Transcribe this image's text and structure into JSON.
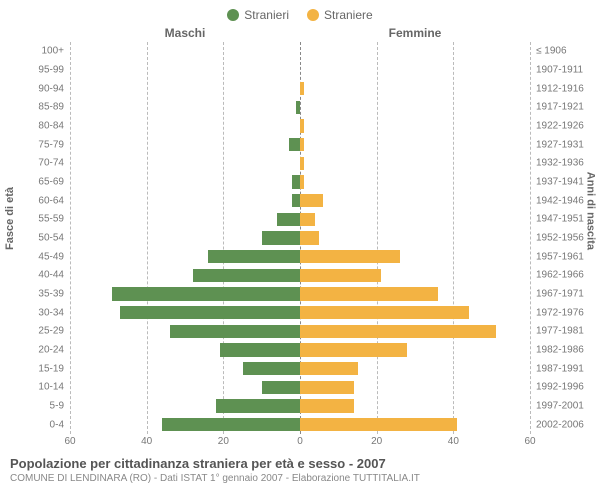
{
  "chart": {
    "type": "population-pyramid",
    "legend": [
      {
        "label": "Stranieri",
        "color": "#5e9152"
      },
      {
        "label": "Straniere",
        "color": "#f3b343"
      }
    ],
    "column_headers": {
      "left": "Maschi",
      "right": "Femmine"
    },
    "y_left_title": "Fasce di età",
    "y_right_title": "Anni di nascita",
    "xlim": 60,
    "xtick_step": 20,
    "grid_color": "#bbbbbb",
    "centerline_color": "#888888",
    "bar_color_left": "#5e9152",
    "bar_color_right": "#f3b343",
    "label_fontsize": 10,
    "header_fontsize": 12,
    "rows": [
      {
        "age": "100+",
        "birth": "≤ 1906",
        "m": 0,
        "f": 0
      },
      {
        "age": "95-99",
        "birth": "1907-1911",
        "m": 0,
        "f": 0
      },
      {
        "age": "90-94",
        "birth": "1912-1916",
        "m": 0,
        "f": 1
      },
      {
        "age": "85-89",
        "birth": "1917-1921",
        "m": 1,
        "f": 0
      },
      {
        "age": "80-84",
        "birth": "1922-1926",
        "m": 0,
        "f": 1
      },
      {
        "age": "75-79",
        "birth": "1927-1931",
        "m": 3,
        "f": 1
      },
      {
        "age": "70-74",
        "birth": "1932-1936",
        "m": 0,
        "f": 1
      },
      {
        "age": "65-69",
        "birth": "1937-1941",
        "m": 2,
        "f": 1
      },
      {
        "age": "60-64",
        "birth": "1942-1946",
        "m": 2,
        "f": 6
      },
      {
        "age": "55-59",
        "birth": "1947-1951",
        "m": 6,
        "f": 4
      },
      {
        "age": "50-54",
        "birth": "1952-1956",
        "m": 10,
        "f": 5
      },
      {
        "age": "45-49",
        "birth": "1957-1961",
        "m": 24,
        "f": 26
      },
      {
        "age": "40-44",
        "birth": "1962-1966",
        "m": 28,
        "f": 21
      },
      {
        "age": "35-39",
        "birth": "1967-1971",
        "m": 49,
        "f": 36
      },
      {
        "age": "30-34",
        "birth": "1972-1976",
        "m": 47,
        "f": 44
      },
      {
        "age": "25-29",
        "birth": "1977-1981",
        "m": 34,
        "f": 51
      },
      {
        "age": "20-24",
        "birth": "1982-1986",
        "m": 21,
        "f": 28
      },
      {
        "age": "15-19",
        "birth": "1987-1991",
        "m": 15,
        "f": 15
      },
      {
        "age": "10-14",
        "birth": "1992-1996",
        "m": 10,
        "f": 14
      },
      {
        "age": "5-9",
        "birth": "1997-2001",
        "m": 22,
        "f": 14
      },
      {
        "age": "0-4",
        "birth": "2002-2006",
        "m": 36,
        "f": 41
      }
    ]
  },
  "footer": {
    "title": "Popolazione per cittadinanza straniera per età e sesso - 2007",
    "subtitle": "COMUNE DI LENDINARA (RO) - Dati ISTAT 1° gennaio 2007 - Elaborazione TUTTITALIA.IT"
  }
}
